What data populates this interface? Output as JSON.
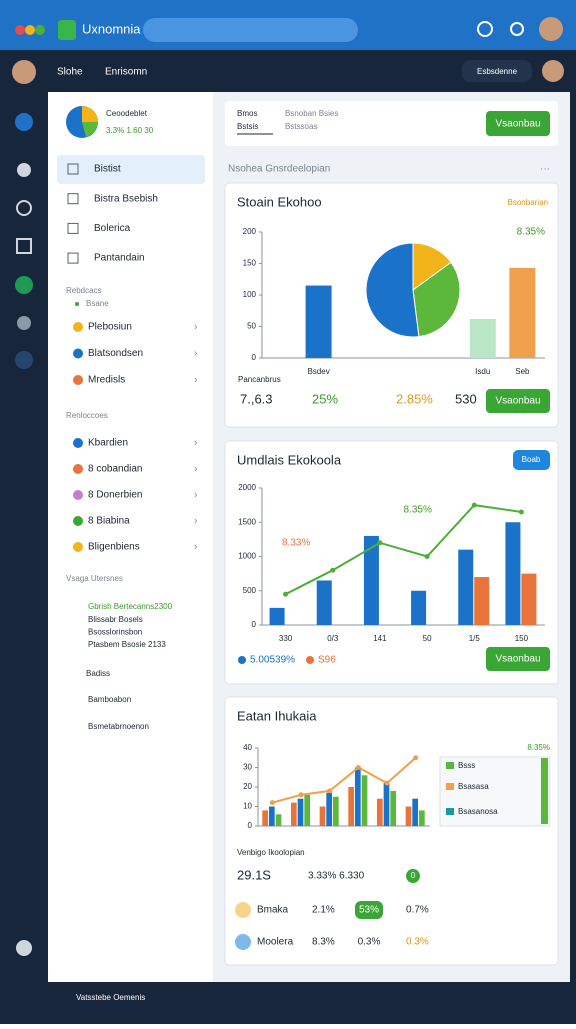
{
  "top_bar": {
    "app_name": "Uxnomnia"
  },
  "nav": {
    "links": [
      "Slohe",
      "Enrisomn"
    ],
    "button": "Esbsdenne"
  },
  "sidebar": {
    "profile": {
      "title": "Ceoodeblet",
      "subtitle": "3.3% 1.60 30"
    },
    "menu": [
      "Bistist",
      "Bistra Bsebish",
      "Bolerica",
      "Pantandain"
    ],
    "sections": [
      {
        "title": "Rebdcacs",
        "subtitle": "Bsane",
        "items": [
          "Plebosiun",
          "Blatsondsen",
          "Mredisls"
        ]
      },
      {
        "title": "Renloccoes",
        "items": [
          "Kbardien",
          "8 cobandian",
          "8 Donerbien",
          "8 Biabina",
          "Bligenbiens"
        ]
      },
      {
        "title": "Vsaga Utersnes",
        "items": [
          "Gbrish Bertecanns2300",
          "Blissabr Bosels",
          "Bsosslorinsbon",
          "Ptasbem Bsosie 2133"
        ]
      }
    ],
    "links": [
      "Badiss",
      "Bamboabon",
      "Bsmetabrnoenon"
    ]
  },
  "main": {
    "tabs": [
      "Bmos",
      "Bsnoban Bsies"
    ],
    "subtabs": [
      "Bstsis",
      "Bstssoas"
    ],
    "button": "Vsaonbau",
    "section_label": "Nsohea Gnsrdeelopian",
    "cards": [
      {
        "title": "Stoain Ekohoo",
        "link": "Bsonbarian",
        "stats": [
          "7.,6.3",
          "25%",
          "2.85%",
          "530"
        ],
        "button": "Vsaonbau",
        "chart": {
          "type": "bar",
          "x_label": "Pancanbrus",
          "categories": [
            "Bsdev",
            "Isdu",
            "Seb"
          ],
          "values": [
            115,
            62,
            143
          ],
          "colors": [
            "#1a73c8",
            "#b9e6c4",
            "#f0a04b"
          ],
          "ylim": [
            0,
            200
          ],
          "yticks": [
            0,
            50,
            100,
            150,
            200
          ],
          "annotation": "8.35%",
          "pie": {
            "values": [
              15,
              33,
              52
            ],
            "colors": [
              "#f2b31b",
              "#5cb83a",
              "#1a73c8"
            ]
          }
        }
      },
      {
        "title": "Umdlais Ekokoola",
        "badge": "Boab",
        "button": "Vsaonbau",
        "chart": {
          "type": "bar",
          "categories": [
            "330",
            "0/3",
            "141",
            "50",
            "1/5",
            "150"
          ],
          "ylim": [
            0,
            2000
          ],
          "yticks": [
            0,
            500,
            1000,
            1500,
            2000
          ],
          "series": [
            {
              "name": "5.00539%",
              "color": "#1a73c8",
              "values": [
                250,
                650,
                1300,
                500,
                1100,
                1500
              ]
            },
            {
              "name": "S96",
              "color": "#e8743b",
              "values": [
                null,
                null,
                null,
                null,
                700,
                750
              ]
            }
          ],
          "line": {
            "color": "#4caf38",
            "values": [
              450,
              800,
              1200,
              1000,
              1750,
              1650
            ]
          },
          "annotations": [
            "8.33%",
            "8.35%"
          ]
        }
      },
      {
        "title": "Eatan Ihukaia",
        "label": "Venbigo Ikoolopian",
        "stats": [
          "29.1S",
          "3.33% 6.330"
        ],
        "badge": "0",
        "rows": [
          [
            "Bmaka",
            "2.1%",
            "53%",
            "0.7%"
          ],
          [
            "Moolera",
            "8.3%",
            "0.3%",
            "0.3%"
          ]
        ],
        "side": {
          "value": "8.35%",
          "items": [
            "Bsss",
            "Bsasasa",
            "Bsasanosa"
          ]
        },
        "chart": {
          "type": "bar",
          "ylim": [
            0,
            40
          ],
          "yticks": [
            0,
            10,
            20,
            30,
            40
          ],
          "series": [
            {
              "color": "#e8743b",
              "values": [
                8,
                12,
                10,
                20,
                14,
                10
              ]
            },
            {
              "color": "#1a73c8",
              "values": [
                10,
                14,
                17,
                30,
                22,
                14
              ]
            },
            {
              "color": "#5cb83a",
              "values": [
                6,
                16,
                15,
                26,
                18,
                8
              ]
            }
          ],
          "line": {
            "color": "#f0a04b",
            "values": [
              12,
              16,
              18,
              30,
              22,
              35
            ]
          }
        }
      }
    ]
  },
  "footer": {
    "text": "Vatsstebe Oemenis"
  }
}
